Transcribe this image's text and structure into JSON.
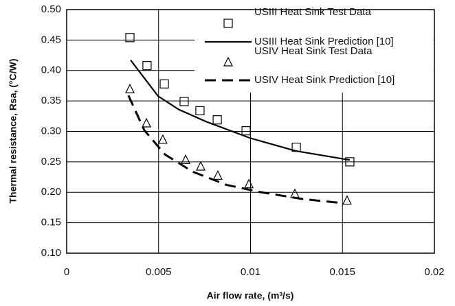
{
  "chart_data": {
    "type": "line",
    "xlabel": "Air flow rate, (m³/s)",
    "ylabel": "Thermal resistance, Rsa, (°C/W)",
    "xlim": [
      0,
      0.02
    ],
    "xticks": [
      0,
      0.005,
      0.01,
      0.015,
      0.02
    ],
    "ylim": [
      0.1,
      0.5
    ],
    "yticks": [
      {
        "value": 0.1,
        "label": "0.10"
      },
      {
        "value": 0.15,
        "label": "0.15"
      },
      {
        "value": 0.2,
        "label": "0.20"
      },
      {
        "value": 0.25,
        "label": "0.25"
      },
      {
        "value": 0.3,
        "label": "0.30"
      },
      {
        "value": 0.35,
        "label": "0.35"
      },
      {
        "value": 0.4,
        "label": "0.40"
      },
      {
        "value": 0.45,
        "label": "0.45"
      },
      {
        "value": 0.5,
        "label": "0.50"
      }
    ],
    "grid": true,
    "legend": "upper right",
    "series": [
      {
        "name": "USIII Heat Sink Test Data",
        "color": "#000000",
        "marker": "square",
        "x": [
          0.00344,
          0.00437,
          0.00531,
          0.00639,
          0.00725,
          0.00819,
          0.00976,
          0.01249,
          0.0154
        ],
        "values": [
          0.454,
          0.408,
          0.378,
          0.349,
          0.334,
          0.319,
          0.301,
          0.274,
          0.25
        ]
      },
      {
        "name": "USIII Heat Sink Prediction [10]",
        "color": "#000000",
        "dash": "solid",
        "x": [
          0.00348,
          0.00497,
          0.00609,
          0.00759,
          0.00998,
          0.01245,
          0.0154
        ],
        "values": [
          0.417,
          0.358,
          0.336,
          0.316,
          0.289,
          0.268,
          0.253
        ]
      },
      {
        "name": "USIV Heat Sink Test Data",
        "color": "#000000",
        "marker": "triangle",
        "x": [
          0.00344,
          0.00434,
          0.00523,
          0.00647,
          0.00729,
          0.00822,
          0.00991,
          0.01241,
          0.01525
        ],
        "values": [
          0.369,
          0.313,
          0.286,
          0.253,
          0.242,
          0.227,
          0.213,
          0.197,
          0.186
        ]
      },
      {
        "name": "USIV Heat Sink Prediction [10]",
        "color": "#000000",
        "dash": "dashed",
        "x": [
          0.00336,
          0.00422,
          0.00535,
          0.00684,
          0.00871,
          0.01058,
          0.01282,
          0.01507
        ],
        "values": [
          0.359,
          0.302,
          0.262,
          0.234,
          0.212,
          0.2,
          0.189,
          0.182
        ]
      }
    ]
  }
}
